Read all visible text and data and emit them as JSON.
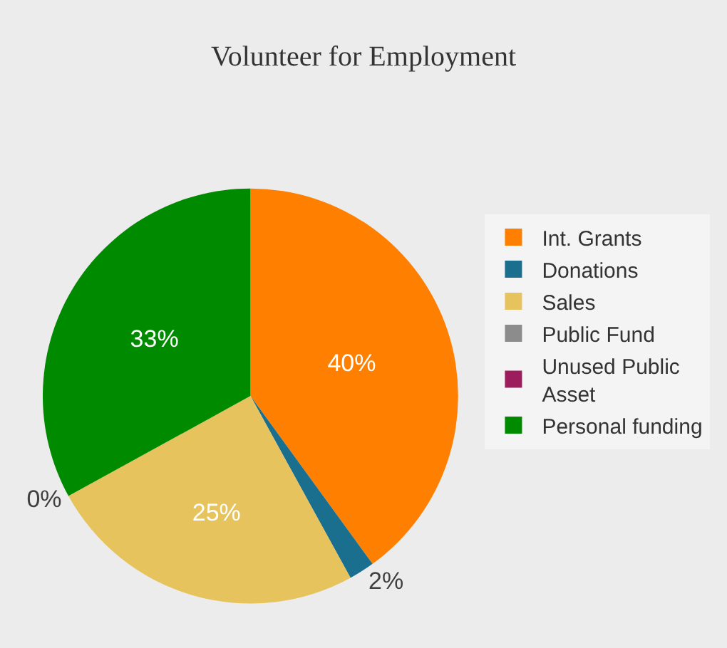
{
  "chart_data": {
    "type": "pie",
    "title": "Volunteer for Employment",
    "categories": [
      "Int. Grants",
      "Donations",
      "Sales",
      "Public Fund",
      "Unused Public Asset",
      "Personal funding"
    ],
    "values": [
      40,
      2,
      25,
      0,
      0,
      33
    ],
    "colors": [
      "#ff7f00",
      "#1a6e8e",
      "#e6c35c",
      "#8c8c8c",
      "#9c1c5c",
      "#008a00"
    ],
    "value_labels": [
      "40%",
      "2%",
      "25%",
      "0%",
      null,
      "33%"
    ],
    "legend": "right"
  }
}
